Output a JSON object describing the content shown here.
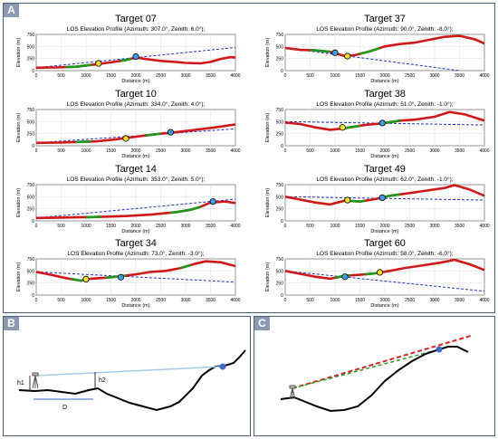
{
  "panels": {
    "a_label": "A",
    "b_label": "B",
    "c_label": "C"
  },
  "chart_common": {
    "subtitle_prefix": "LOS Elevation Profile (Azimuth: ",
    "xlabel": "Distance (m)",
    "ylabel": "Elevation (m)",
    "x_ticks": [
      "0",
      "500",
      "1000",
      "1500",
      "2000",
      "2500",
      "3000",
      "3500",
      "4000"
    ],
    "y_ticks": [
      "0",
      "250",
      "500",
      "750"
    ]
  },
  "chart_data": [
    {
      "type": "line",
      "title": "Target 07",
      "subtitle": "LOS Elevation Profile (Azimuth: 307.0°, Zenith: 6.0°);",
      "xlim": [
        0,
        4000
      ],
      "ylim": [
        0,
        750
      ],
      "terrain": [
        [
          0,
          60
        ],
        [
          400,
          65
        ],
        [
          800,
          80
        ],
        [
          1200,
          130
        ],
        [
          1500,
          170
        ],
        [
          1800,
          220
        ],
        [
          2000,
          270
        ],
        [
          2200,
          240
        ],
        [
          2500,
          200
        ],
        [
          2800,
          180
        ],
        [
          3000,
          160
        ],
        [
          3300,
          150
        ],
        [
          3500,
          180
        ],
        [
          3700,
          240
        ],
        [
          3900,
          280
        ],
        [
          4000,
          270
        ]
      ],
      "green": [
        [
          600,
          1100
        ],
        [
          1700,
          1900
        ]
      ],
      "los": [
        [
          0,
          60
        ],
        [
          4000,
          480
        ]
      ],
      "yellow": [
        1250,
        150
      ],
      "blue": [
        2000,
        290
      ]
    },
    {
      "type": "line",
      "title": "Target 37",
      "subtitle": "LOS Elevation Profile (Azimuth: 90.0°, Zenith: -8.0°);",
      "xlim": [
        0,
        4000
      ],
      "ylim": [
        0,
        750
      ],
      "terrain": [
        [
          0,
          470
        ],
        [
          300,
          430
        ],
        [
          600,
          420
        ],
        [
          900,
          390
        ],
        [
          1200,
          300
        ],
        [
          1400,
          320
        ],
        [
          1700,
          400
        ],
        [
          2000,
          500
        ],
        [
          2300,
          550
        ],
        [
          2600,
          580
        ],
        [
          2900,
          640
        ],
        [
          3200,
          700
        ],
        [
          3500,
          720
        ],
        [
          3800,
          650
        ],
        [
          4000,
          560
        ]
      ],
      "green": [
        [
          500,
          900
        ],
        [
          1500,
          1900
        ]
      ],
      "los": [
        [
          0,
          470
        ],
        [
          3500,
          0
        ]
      ],
      "yellow": [
        1250,
        300
      ],
      "blue": [
        1000,
        370
      ]
    },
    {
      "type": "line",
      "title": "Target 10",
      "subtitle": "LOS Elevation Profile (Azimuth: 334.0°, Zenith: 4.0°);",
      "xlim": [
        0,
        4000
      ],
      "ylim": [
        0,
        750
      ],
      "terrain": [
        [
          0,
          60
        ],
        [
          500,
          65
        ],
        [
          900,
          80
        ],
        [
          1200,
          90
        ],
        [
          1500,
          120
        ],
        [
          1800,
          160
        ],
        [
          2100,
          200
        ],
        [
          2500,
          250
        ],
        [
          2800,
          280
        ],
        [
          3200,
          330
        ],
        [
          3600,
          380
        ],
        [
          4000,
          440
        ]
      ],
      "green": [
        [
          800,
          1100
        ],
        [
          2200,
          2500
        ]
      ],
      "los": [
        [
          0,
          60
        ],
        [
          4000,
          350
        ]
      ],
      "yellow": [
        1800,
        150
      ],
      "blue": [
        2700,
        280
      ]
    },
    {
      "type": "line",
      "title": "Target 38",
      "subtitle": "LOS Elevation Profile (Azimuth: 51.0°, Zenith: -1.0°);",
      "xlim": [
        0,
        4000
      ],
      "ylim": [
        0,
        750
      ],
      "terrain": [
        [
          0,
          480
        ],
        [
          300,
          450
        ],
        [
          600,
          380
        ],
        [
          900,
          330
        ],
        [
          1100,
          350
        ],
        [
          1300,
          380
        ],
        [
          1600,
          430
        ],
        [
          2000,
          470
        ],
        [
          2300,
          520
        ],
        [
          2600,
          540
        ],
        [
          3000,
          600
        ],
        [
          3300,
          700
        ],
        [
          3600,
          650
        ],
        [
          4000,
          520
        ]
      ],
      "green": [
        [
          1200,
          1500
        ],
        [
          1900,
          2300
        ]
      ],
      "los": [
        [
          0,
          500
        ],
        [
          4000,
          430
        ]
      ],
      "yellow": [
        1150,
        380
      ],
      "blue": [
        1950,
        470
      ]
    },
    {
      "type": "line",
      "title": "Target 14",
      "subtitle": "LOS Elevation Profile (Azimuth: 353.0°, Zenith: 5.0°);",
      "xlim": [
        0,
        4000
      ],
      "ylim": [
        0,
        750
      ],
      "terrain": [
        [
          0,
          60
        ],
        [
          600,
          70
        ],
        [
          1200,
          80
        ],
        [
          1800,
          100
        ],
        [
          2300,
          130
        ],
        [
          2800,
          180
        ],
        [
          3100,
          230
        ],
        [
          3300,
          290
        ],
        [
          3500,
          380
        ],
        [
          3800,
          400
        ],
        [
          4000,
          370
        ]
      ],
      "green": [
        [
          1000,
          1300
        ],
        [
          2700,
          3300
        ]
      ],
      "los": [
        [
          0,
          60
        ],
        [
          4000,
          450
        ]
      ],
      "yellow": null,
      "blue": [
        3550,
        400
      ]
    },
    {
      "type": "line",
      "title": "Target 49",
      "subtitle": "LOS Elevation Profile (Azimuth: 62.0°, Zenith: -1.0°);",
      "xlim": [
        0,
        4000
      ],
      "ylim": [
        0,
        750
      ],
      "terrain": [
        [
          0,
          500
        ],
        [
          300,
          440
        ],
        [
          600,
          380
        ],
        [
          900,
          340
        ],
        [
          1200,
          420
        ],
        [
          1500,
          400
        ],
        [
          1800,
          450
        ],
        [
          2100,
          520
        ],
        [
          2400,
          560
        ],
        [
          2800,
          620
        ],
        [
          3200,
          680
        ],
        [
          3400,
          740
        ],
        [
          3700,
          650
        ],
        [
          4000,
          520
        ]
      ],
      "green": [
        [
          1300,
          1600
        ],
        [
          1900,
          2300
        ]
      ],
      "los": [
        [
          0,
          500
        ],
        [
          4000,
          430
        ]
      ],
      "yellow": [
        1250,
        430
      ],
      "blue": [
        1950,
        480
      ]
    },
    {
      "type": "line",
      "title": "Target 34",
      "subtitle": "LOS Elevation Profile (Azimuth: 73.0°, Zenith: -3.0°);",
      "xlim": [
        0,
        4000
      ],
      "ylim": [
        0,
        750
      ],
      "terrain": [
        [
          0,
          480
        ],
        [
          300,
          420
        ],
        [
          600,
          350
        ],
        [
          900,
          300
        ],
        [
          1100,
          340
        ],
        [
          1400,
          360
        ],
        [
          1700,
          390
        ],
        [
          2000,
          430
        ],
        [
          2300,
          480
        ],
        [
          2600,
          500
        ],
        [
          2900,
          560
        ],
        [
          3200,
          650
        ],
        [
          3400,
          700
        ],
        [
          3700,
          680
        ],
        [
          4000,
          600
        ]
      ],
      "green": [
        [
          700,
          1000
        ],
        [
          1400,
          1800
        ],
        [
          2900,
          3100
        ]
      ],
      "los": [
        [
          0,
          480
        ],
        [
          4000,
          270
        ]
      ],
      "yellow": [
        1000,
        330
      ],
      "blue": [
        1700,
        370
      ]
    },
    {
      "type": "line",
      "title": "Target 60",
      "subtitle": "LOS Elevation Profile (Azimuth: 58.0°, Zenith: -6.0°);",
      "xlim": [
        0,
        4000
      ],
      "ylim": [
        0,
        750
      ],
      "terrain": [
        [
          0,
          500
        ],
        [
          300,
          440
        ],
        [
          600,
          380
        ],
        [
          900,
          340
        ],
        [
          1200,
          400
        ],
        [
          1500,
          420
        ],
        [
          1800,
          450
        ],
        [
          2100,
          500
        ],
        [
          2400,
          560
        ],
        [
          2800,
          620
        ],
        [
          3100,
          670
        ],
        [
          3400,
          730
        ],
        [
          3700,
          640
        ],
        [
          4000,
          520
        ]
      ],
      "green": [
        [
          1000,
          1300
        ],
        [
          1600,
          1900
        ]
      ],
      "los": [
        [
          0,
          500
        ],
        [
          4000,
          80
        ]
      ],
      "yellow": [
        1900,
        470
      ],
      "blue": [
        1200,
        380
      ]
    }
  ],
  "diagram_b": {
    "h1_label": "h1",
    "h2_label": "h2",
    "d_label": "D"
  }
}
